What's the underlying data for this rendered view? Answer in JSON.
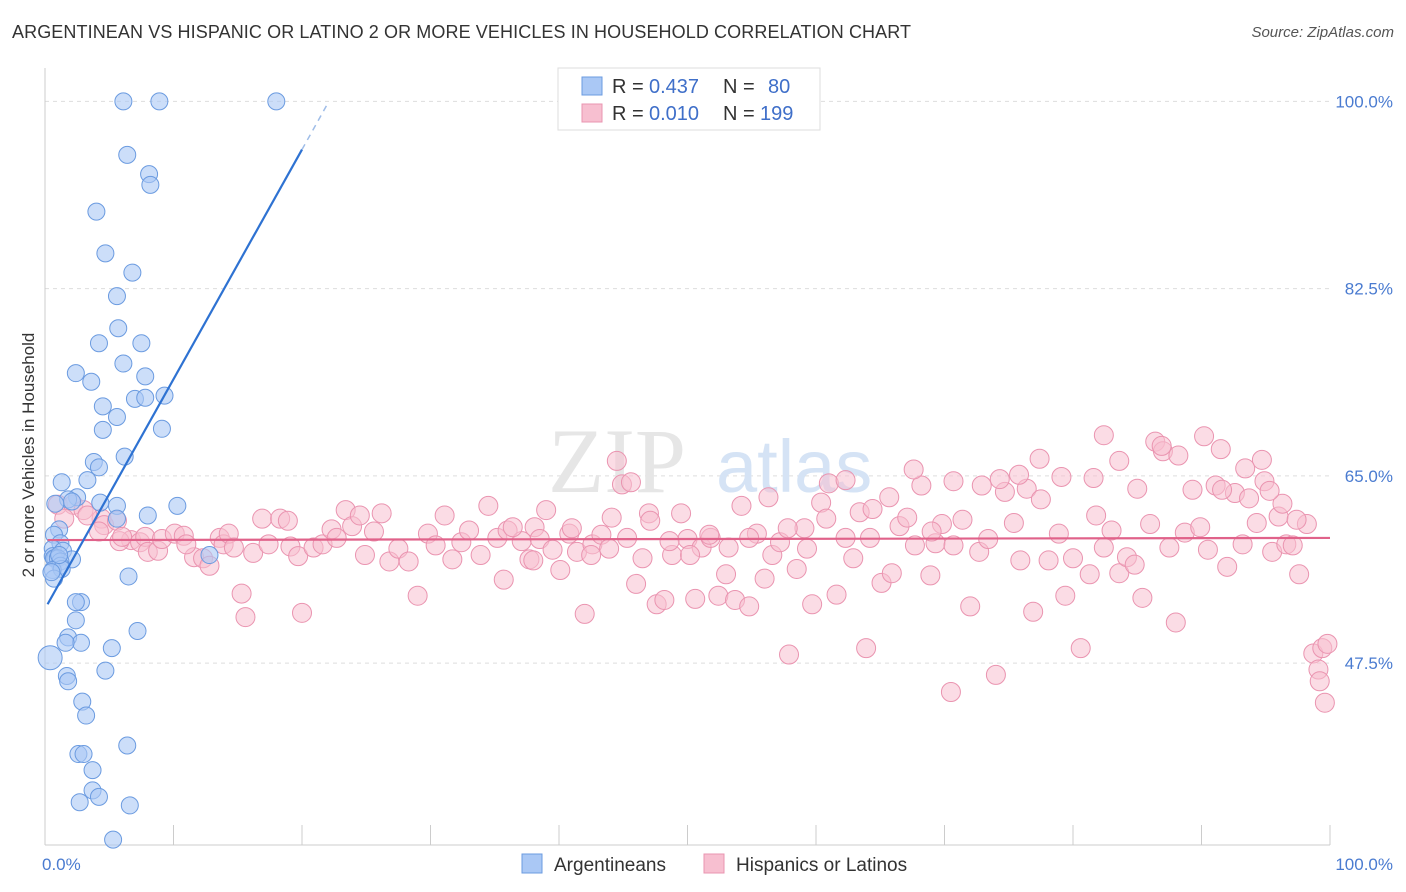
{
  "title": "ARGENTINEAN VS HISPANIC OR LATINO 2 OR MORE VEHICLES IN HOUSEHOLD CORRELATION CHART",
  "source": "Source: ZipAtlas.com",
  "watermark": {
    "zip": "ZIP",
    "atlas": "atlas"
  },
  "colors": {
    "argentineans_fill": "#aac8f5",
    "argentineans_stroke": "#6b9be0",
    "argentineans_line": "#2e72d2",
    "hispanics_fill": "#f7bfd0",
    "hispanics_stroke": "#ea94b0",
    "hispanics_line": "#e0628a",
    "axis_text": "#4a7bd0",
    "grid": "#dddddd"
  },
  "legend": {
    "rows": [
      {
        "r_label": "R =",
        "r_value": "0.437",
        "n_label": "N =",
        "n_value": "80"
      },
      {
        "r_label": "R =",
        "r_value": "0.010",
        "n_label": "N =",
        "n_value": "199"
      }
    ]
  },
  "bottom_legend": [
    "Argentineans",
    "Hispanics or Latinos"
  ],
  "chart_data": {
    "type": "scatter",
    "title": "ARGENTINEAN VS HISPANIC OR LATINO 2 OR MORE VEHICLES IN HOUSEHOLD CORRELATION CHART",
    "xlabel": "",
    "ylabel": "2 or more Vehicles in Household",
    "xlim": [
      0,
      100
    ],
    "ylim": [
      30.5,
      102
    ],
    "x_tick_labels": [
      "0.0%",
      "100.0%"
    ],
    "y_ticks": [
      47.5,
      65.0,
      82.5,
      100.0
    ],
    "y_tick_labels": [
      "47.5%",
      "65.0%",
      "82.5%",
      "100.0%"
    ],
    "grid": true,
    "legend_position": "top-center",
    "series": [
      {
        "name": "Argentineans",
        "R": 0.437,
        "N": 80,
        "trend": {
          "x": [
            0.2,
            20.0
          ],
          "y": [
            53.0,
            95.5
          ]
        },
        "trend_dashed": {
          "x": [
            20.0,
            22.0
          ],
          "y": [
            95.5,
            99.8
          ]
        },
        "points": [
          [
            6.1,
            100.0
          ],
          [
            8.9,
            100.0
          ],
          [
            18.0,
            100.0
          ],
          [
            6.4,
            95.0
          ],
          [
            8.1,
            93.2
          ],
          [
            8.2,
            92.2
          ],
          [
            4.0,
            89.7
          ],
          [
            4.7,
            85.8
          ],
          [
            6.8,
            84.0
          ],
          [
            5.6,
            81.8
          ],
          [
            5.7,
            78.8
          ],
          [
            4.2,
            77.4
          ],
          [
            7.5,
            77.4
          ],
          [
            6.1,
            75.5
          ],
          [
            2.4,
            74.6
          ],
          [
            7.8,
            74.3
          ],
          [
            3.6,
            73.8
          ],
          [
            7.0,
            72.2
          ],
          [
            9.3,
            72.5
          ],
          [
            7.8,
            72.3
          ],
          [
            4.5,
            71.5
          ],
          [
            5.6,
            70.5
          ],
          [
            9.1,
            69.4
          ],
          [
            4.5,
            69.3
          ],
          [
            6.2,
            66.8
          ],
          [
            3.8,
            66.3
          ],
          [
            4.2,
            65.8
          ],
          [
            3.3,
            64.6
          ],
          [
            1.3,
            64.4
          ],
          [
            2.5,
            63.0
          ],
          [
            1.8,
            62.8
          ],
          [
            2.1,
            62.6
          ],
          [
            0.8,
            62.4
          ],
          [
            4.3,
            62.5
          ],
          [
            5.6,
            62.2
          ],
          [
            10.3,
            62.2
          ],
          [
            8.0,
            61.3
          ],
          [
            5.6,
            61.0
          ],
          [
            1.1,
            60.0
          ],
          [
            0.7,
            59.5
          ],
          [
            1.2,
            58.7
          ],
          [
            0.6,
            58.2
          ],
          [
            1.4,
            58.0
          ],
          [
            0.6,
            57.5
          ],
          [
            0.8,
            57.3
          ],
          [
            0.7,
            57.3
          ],
          [
            1.0,
            57.3
          ],
          [
            2.1,
            57.2
          ],
          [
            1.2,
            57.0
          ],
          [
            12.8,
            57.6
          ],
          [
            1.2,
            56.6
          ],
          [
            0.6,
            56.2
          ],
          [
            1.3,
            56.3
          ],
          [
            0.7,
            55.4
          ],
          [
            6.5,
            55.6
          ],
          [
            2.8,
            53.2
          ],
          [
            2.4,
            53.2
          ],
          [
            2.4,
            51.5
          ],
          [
            7.2,
            50.5
          ],
          [
            1.8,
            49.9
          ],
          [
            2.8,
            49.4
          ],
          [
            1.6,
            49.4
          ],
          [
            5.2,
            48.9
          ],
          [
            0.4,
            48.0
          ],
          [
            4.7,
            46.8
          ],
          [
            1.7,
            46.3
          ],
          [
            1.8,
            45.8
          ],
          [
            2.9,
            43.9
          ],
          [
            3.2,
            42.6
          ],
          [
            6.4,
            39.8
          ],
          [
            2.6,
            39.0
          ],
          [
            3.0,
            39.0
          ],
          [
            3.7,
            37.5
          ],
          [
            3.7,
            35.6
          ],
          [
            4.2,
            35.0
          ],
          [
            2.7,
            34.5
          ],
          [
            6.6,
            34.2
          ],
          [
            5.3,
            31.0
          ],
          [
            1.1,
            57.6
          ],
          [
            0.5,
            56.0
          ]
        ]
      },
      {
        "name": "Hispanics or Latinos",
        "R": 0.01,
        "N": 199,
        "trend": {
          "x": [
            0.2,
            100.0
          ],
          "y": [
            59.0,
            59.2
          ]
        },
        "points": [
          [
            1.0,
            62.3
          ],
          [
            2.2,
            62.3
          ],
          [
            3.0,
            61.8
          ],
          [
            4.4,
            61.0
          ],
          [
            1.5,
            61.0
          ],
          [
            3.3,
            61.3
          ],
          [
            4.6,
            60.4
          ],
          [
            4.2,
            59.8
          ],
          [
            5.6,
            60.8
          ],
          [
            6.7,
            59.0
          ],
          [
            5.8,
            58.9
          ],
          [
            6.0,
            59.3
          ],
          [
            7.4,
            58.8
          ],
          [
            7.8,
            59.3
          ],
          [
            8.0,
            57.9
          ],
          [
            8.8,
            58.0
          ],
          [
            9.1,
            59.1
          ],
          [
            10.1,
            59.6
          ],
          [
            10.8,
            59.4
          ],
          [
            11.6,
            57.4
          ],
          [
            11.0,
            58.6
          ],
          [
            12.3,
            57.3
          ],
          [
            12.8,
            56.6
          ],
          [
            13.6,
            59.2
          ],
          [
            13.9,
            58.6
          ],
          [
            14.3,
            59.6
          ],
          [
            14.7,
            58.3
          ],
          [
            15.3,
            54.0
          ],
          [
            15.6,
            51.8
          ],
          [
            16.2,
            57.8
          ],
          [
            16.9,
            61.0
          ],
          [
            17.4,
            58.6
          ],
          [
            18.3,
            61.0
          ],
          [
            18.9,
            60.8
          ],
          [
            19.1,
            58.4
          ],
          [
            19.7,
            57.5
          ],
          [
            20.0,
            52.2
          ],
          [
            20.9,
            58.3
          ],
          [
            21.6,
            58.6
          ],
          [
            22.3,
            60.0
          ],
          [
            22.7,
            59.2
          ],
          [
            23.4,
            61.8
          ],
          [
            23.9,
            60.3
          ],
          [
            24.5,
            61.3
          ],
          [
            24.9,
            57.6
          ],
          [
            25.6,
            59.8
          ],
          [
            26.2,
            61.5
          ],
          [
            26.8,
            57.0
          ],
          [
            27.5,
            58.2
          ],
          [
            28.3,
            57.0
          ],
          [
            29.0,
            53.8
          ],
          [
            29.8,
            59.6
          ],
          [
            30.4,
            58.5
          ],
          [
            31.1,
            61.3
          ],
          [
            31.7,
            57.2
          ],
          [
            32.4,
            58.8
          ],
          [
            33.0,
            59.9
          ],
          [
            33.9,
            57.6
          ],
          [
            34.5,
            62.2
          ],
          [
            35.2,
            59.2
          ],
          [
            35.7,
            55.3
          ],
          [
            36.0,
            59.9
          ],
          [
            37.1,
            58.9
          ],
          [
            37.7,
            57.2
          ],
          [
            38.1,
            60.2
          ],
          [
            39.0,
            61.8
          ],
          [
            38.5,
            59.1
          ],
          [
            40.1,
            56.2
          ],
          [
            40.8,
            59.6
          ],
          [
            41.4,
            57.9
          ],
          [
            42.0,
            52.1
          ],
          [
            42.6,
            58.6
          ],
          [
            43.3,
            59.5
          ],
          [
            43.9,
            58.2
          ],
          [
            44.5,
            66.4
          ],
          [
            44.9,
            64.2
          ],
          [
            45.3,
            59.2
          ],
          [
            46.0,
            54.9
          ],
          [
            46.5,
            57.3
          ],
          [
            47.0,
            61.5
          ],
          [
            47.6,
            53.0
          ],
          [
            48.2,
            53.4
          ],
          [
            48.8,
            57.6
          ],
          [
            49.5,
            61.5
          ],
          [
            50.0,
            59.1
          ],
          [
            50.6,
            53.5
          ],
          [
            51.1,
            58.3
          ],
          [
            51.8,
            59.2
          ],
          [
            52.4,
            53.8
          ],
          [
            53.0,
            55.8
          ],
          [
            53.7,
            53.4
          ],
          [
            54.2,
            62.2
          ],
          [
            54.8,
            52.8
          ],
          [
            55.4,
            59.6
          ],
          [
            56.0,
            55.4
          ],
          [
            56.6,
            57.6
          ],
          [
            57.2,
            58.8
          ],
          [
            57.9,
            48.3
          ],
          [
            58.5,
            56.3
          ],
          [
            59.1,
            60.1
          ],
          [
            59.7,
            53.0
          ],
          [
            60.4,
            62.5
          ],
          [
            61.0,
            64.3
          ],
          [
            61.6,
            53.9
          ],
          [
            62.3,
            59.2
          ],
          [
            62.9,
            57.3
          ],
          [
            63.4,
            61.6
          ],
          [
            63.9,
            48.9
          ],
          [
            64.4,
            61.9
          ],
          [
            65.1,
            55.0
          ],
          [
            65.9,
            55.9
          ],
          [
            66.5,
            60.3
          ],
          [
            67.1,
            61.1
          ],
          [
            67.7,
            58.5
          ],
          [
            68.2,
            64.1
          ],
          [
            68.9,
            55.7
          ],
          [
            69.3,
            58.7
          ],
          [
            69.8,
            60.5
          ],
          [
            70.5,
            44.8
          ],
          [
            70.7,
            58.5
          ],
          [
            71.4,
            60.9
          ],
          [
            72.0,
            52.8
          ],
          [
            72.7,
            57.9
          ],
          [
            73.4,
            59.1
          ],
          [
            74.0,
            46.4
          ],
          [
            74.7,
            63.5
          ],
          [
            75.4,
            60.6
          ],
          [
            75.9,
            57.1
          ],
          [
            76.4,
            63.8
          ],
          [
            76.9,
            52.3
          ],
          [
            77.5,
            62.8
          ],
          [
            78.1,
            57.1
          ],
          [
            78.9,
            59.6
          ],
          [
            79.4,
            53.8
          ],
          [
            80.0,
            57.3
          ],
          [
            80.6,
            48.9
          ],
          [
            81.3,
            55.8
          ],
          [
            81.8,
            61.3
          ],
          [
            82.4,
            58.3
          ],
          [
            83.0,
            59.9
          ],
          [
            83.6,
            55.9
          ],
          [
            84.2,
            57.4
          ],
          [
            84.8,
            56.7
          ],
          [
            85.4,
            53.6
          ],
          [
            86.0,
            60.5
          ],
          [
            86.4,
            68.2
          ],
          [
            87.0,
            67.3
          ],
          [
            87.5,
            58.3
          ],
          [
            88.0,
            51.3
          ],
          [
            88.7,
            59.7
          ],
          [
            89.3,
            63.7
          ],
          [
            89.9,
            60.2
          ],
          [
            90.5,
            58.1
          ],
          [
            91.1,
            64.1
          ],
          [
            91.5,
            67.5
          ],
          [
            92.0,
            56.5
          ],
          [
            92.6,
            63.4
          ],
          [
            93.2,
            58.6
          ],
          [
            93.7,
            62.9
          ],
          [
            94.3,
            60.6
          ],
          [
            94.9,
            64.5
          ],
          [
            95.5,
            57.9
          ],
          [
            96.0,
            61.2
          ],
          [
            96.6,
            58.6
          ],
          [
            97.1,
            58.5
          ],
          [
            97.6,
            55.8
          ],
          [
            98.2,
            60.5
          ],
          [
            98.7,
            48.4
          ],
          [
            99.1,
            46.9
          ],
          [
            99.4,
            48.9
          ],
          [
            99.8,
            49.3
          ],
          [
            99.2,
            45.8
          ],
          [
            99.6,
            43.8
          ],
          [
            96.3,
            62.4
          ],
          [
            97.4,
            60.9
          ],
          [
            95.3,
            63.6
          ],
          [
            94.7,
            66.5
          ],
          [
            93.4,
            65.7
          ],
          [
            91.6,
            63.7
          ],
          [
            90.2,
            68.7
          ],
          [
            88.2,
            66.9
          ],
          [
            86.9,
            67.8
          ],
          [
            85.0,
            63.8
          ],
          [
            83.6,
            66.4
          ],
          [
            82.4,
            68.8
          ],
          [
            81.6,
            64.8
          ],
          [
            79.1,
            64.9
          ],
          [
            77.4,
            66.6
          ],
          [
            75.8,
            65.1
          ],
          [
            74.3,
            64.7
          ],
          [
            72.9,
            64.1
          ],
          [
            70.7,
            64.5
          ],
          [
            69.0,
            59.8
          ],
          [
            67.6,
            65.6
          ],
          [
            65.7,
            63.0
          ],
          [
            64.2,
            59.2
          ],
          [
            62.3,
            64.6
          ],
          [
            60.8,
            61.0
          ],
          [
            59.3,
            58.2
          ],
          [
            57.8,
            60.1
          ],
          [
            56.3,
            63.0
          ],
          [
            54.8,
            59.2
          ],
          [
            53.2,
            58.3
          ],
          [
            51.7,
            59.5
          ],
          [
            50.2,
            57.6
          ],
          [
            48.6,
            58.9
          ],
          [
            47.1,
            60.8
          ],
          [
            45.6,
            64.4
          ],
          [
            44.1,
            61.1
          ],
          [
            42.5,
            57.6
          ],
          [
            41.0,
            60.1
          ],
          [
            39.5,
            58.1
          ],
          [
            38.0,
            57.1
          ],
          [
            36.4,
            60.2
          ]
        ]
      }
    ]
  }
}
